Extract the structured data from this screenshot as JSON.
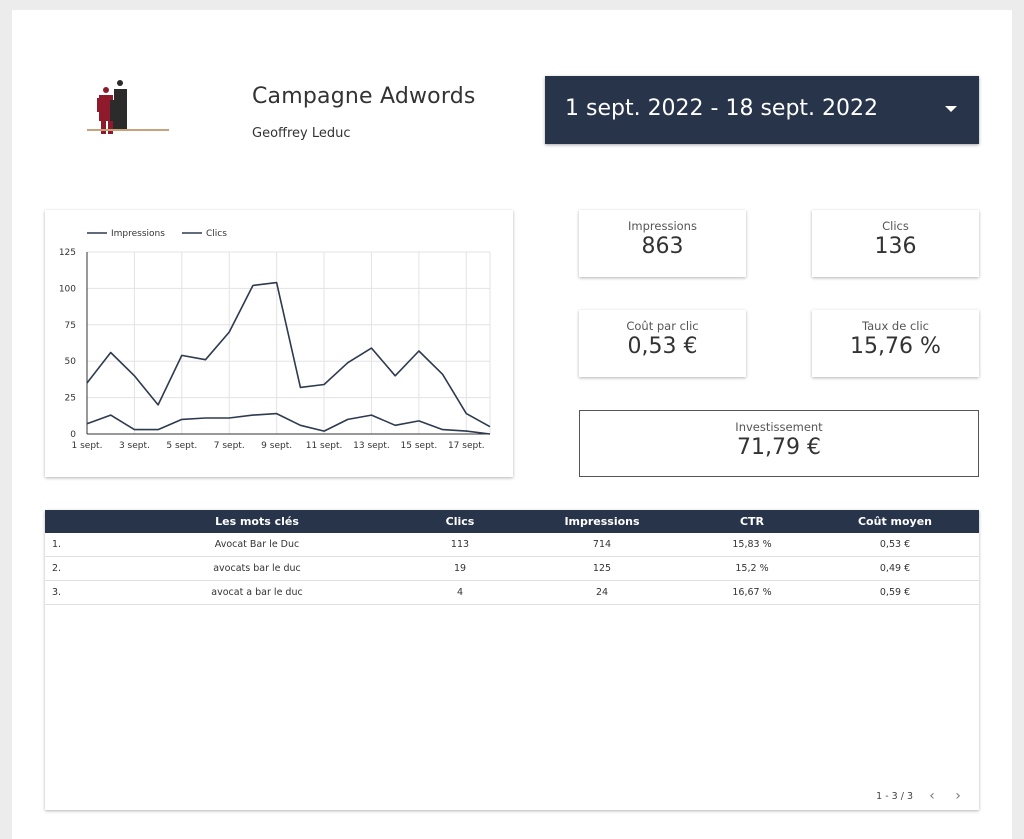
{
  "header": {
    "title": "Campagne Adwords",
    "subtitle": "Geoffrey Leduc"
  },
  "date_range": {
    "label": "1 sept. 2022 - 18 sept. 2022"
  },
  "kpis": {
    "impressions": {
      "label": "Impressions",
      "value": "863"
    },
    "clics": {
      "label": "Clics",
      "value": "136"
    },
    "cpc": {
      "label": "Coût par clic",
      "value": "0,53 €"
    },
    "ctr": {
      "label": "Taux de clic",
      "value": "15,76 %"
    },
    "investissement": {
      "label": "Investissement",
      "value": "71,79 €"
    }
  },
  "chart_data": {
    "type": "line",
    "x": [
      "1 sept.",
      "2 sept.",
      "3 sept.",
      "4 sept.",
      "5 sept.",
      "6 sept.",
      "7 sept.",
      "8 sept.",
      "9 sept.",
      "10 sept.",
      "11 sept.",
      "12 sept.",
      "13 sept.",
      "14 sept.",
      "15 sept.",
      "16 sept.",
      "17 sept.",
      "18 sept."
    ],
    "tick_labels": [
      "1 sept.",
      "3 sept.",
      "5 sept.",
      "7 sept.",
      "9 sept.",
      "11 sept.",
      "13 sept.",
      "15 sept.",
      "17 sept."
    ],
    "series": [
      {
        "name": "Impressions",
        "values": [
          35,
          56,
          40,
          20,
          54,
          51,
          70,
          102,
          104,
          32,
          34,
          49,
          59,
          40,
          57,
          41,
          14,
          5
        ]
      },
      {
        "name": "Clics",
        "values": [
          7,
          13,
          3,
          3,
          10,
          11,
          11,
          13,
          14,
          6,
          2,
          10,
          13,
          6,
          9,
          3,
          2,
          0
        ]
      }
    ],
    "yticks": [
      0,
      25,
      50,
      75,
      100,
      125
    ],
    "ylim": [
      0,
      125
    ],
    "grid": true,
    "legend_position": "top-left",
    "line_color": "#2e3a4f"
  },
  "table": {
    "columns": [
      "Les mots clés",
      "Clics",
      "Impressions",
      "CTR",
      "Coût moyen"
    ],
    "rows": [
      {
        "num": "1.",
        "keyword": "Avocat Bar le Duc",
        "clics": "113",
        "impressions": "714",
        "ctr": "15,83 %",
        "cout": "0,53 €"
      },
      {
        "num": "2.",
        "keyword": "avocats bar le duc",
        "clics": "19",
        "impressions": "125",
        "ctr": "15,2 %",
        "cout": "0,49 €"
      },
      {
        "num": "3.",
        "keyword": "avocat a bar le duc",
        "clics": "4",
        "impressions": "24",
        "ctr": "16,67 %",
        "cout": "0,59 €"
      }
    ],
    "pagination": "1 - 3 / 3"
  },
  "colors": {
    "header_bg": "#27344a",
    "logo_red": "#8e1a2b",
    "logo_dark": "#2b2b2b",
    "logo_line": "#c8a27a"
  }
}
